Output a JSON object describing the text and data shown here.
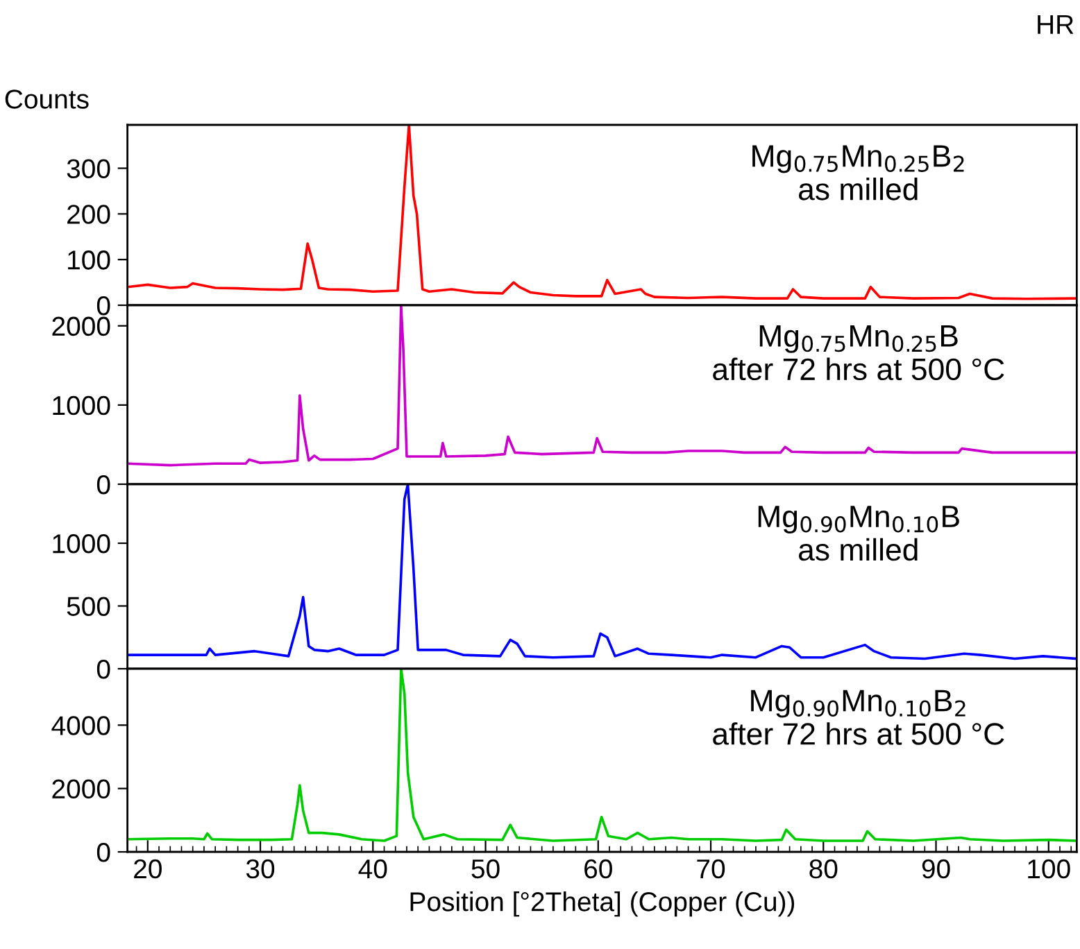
{
  "chart_data": [
    {
      "type": "line",
      "ylabel": "Counts",
      "annotations": [
        "Mg$_{0.75}$Mn$_{0.25}$B$_{2}$\nas milled",
        "HR"
      ],
      "xlim": [
        18.2,
        102.5
      ],
      "ylim": [
        0,
        395
      ],
      "yticks": [
        0,
        100,
        200,
        300
      ],
      "tick_labels": "y",
      "series": [
        {
          "color": "#ff0000",
          "x": [
            18.2,
            20,
            22,
            23.5,
            24,
            26,
            28,
            30,
            32,
            33.6,
            34.2,
            34.6,
            35.2,
            36,
            38,
            40,
            42.2,
            42.8,
            43.2,
            43.6,
            43.9,
            44.4,
            45,
            47,
            49,
            51.5,
            52.5,
            53,
            54,
            56,
            58,
            60.3,
            60.8,
            61.5,
            63.8,
            64.2,
            65,
            68,
            71,
            74,
            76.8,
            77.3,
            78,
            80,
            83.7,
            84.2,
            85,
            88,
            92,
            93,
            95,
            98,
            102.5
          ],
          "values": [
            40,
            45,
            38,
            40,
            48,
            38,
            37,
            35,
            34,
            36,
            135,
            100,
            38,
            35,
            34,
            30,
            32,
            260,
            395,
            240,
            200,
            35,
            30,
            35,
            28,
            26,
            50,
            40,
            28,
            22,
            20,
            20,
            55,
            25,
            35,
            25,
            18,
            16,
            18,
            15,
            15,
            35,
            18,
            15,
            15,
            40,
            18,
            15,
            16,
            25,
            15,
            14,
            15
          ]
        }
      ]
    },
    {
      "type": "line",
      "annotations": [
        "Mg$_{0.75}$Mn$_{0.25}$B\nafter 72 hrs at 500 °C"
      ],
      "xlim": [
        18.2,
        102.5
      ],
      "ylim": [
        0,
        2260
      ],
      "yticks": [
        0,
        1000,
        2000
      ],
      "tick_labels": "y",
      "series": [
        {
          "color": "#cc00cc",
          "x": [
            18.2,
            22,
            26,
            28.7,
            29,
            30,
            32,
            33.3,
            33.5,
            33.8,
            34.3,
            34.8,
            35.3,
            38,
            40,
            42.2,
            42.5,
            42.7,
            43,
            46,
            46.2,
            46.5,
            50,
            51.7,
            52,
            52.6,
            55,
            59.6,
            59.9,
            60.4,
            63,
            66,
            68,
            71,
            73,
            76.2,
            76.6,
            77.2,
            80,
            83.7,
            84,
            84.5,
            88,
            92,
            92.3,
            95,
            98,
            102.5
          ],
          "values": [
            260,
            240,
            260,
            260,
            310,
            270,
            280,
            300,
            1120,
            700,
            300,
            360,
            310,
            310,
            320,
            450,
            2260,
            1700,
            350,
            350,
            520,
            350,
            360,
            380,
            600,
            400,
            380,
            400,
            580,
            410,
            400,
            400,
            420,
            420,
            400,
            400,
            470,
            410,
            400,
            400,
            460,
            410,
            400,
            400,
            450,
            400,
            400,
            400
          ]
        }
      ]
    },
    {
      "type": "line",
      "annotations": [
        "Mg$_{0.90}$Mn$_{0.10}$B\nas milled"
      ],
      "xlim": [
        18.2,
        102.5
      ],
      "ylim": [
        0,
        1470
      ],
      "yticks": [
        0,
        500,
        1000
      ],
      "tick_labels": "y",
      "series": [
        {
          "color": "#0000ff",
          "x": [
            18.2,
            22,
            25.2,
            25.5,
            26,
            29.5,
            31,
            32.5,
            33.5,
            33.8,
            34.3,
            34.8,
            36,
            37,
            38.5,
            41,
            42.2,
            42.8,
            43.1,
            43.6,
            44,
            46.5,
            48,
            51.3,
            52.2,
            52.8,
            53.5,
            56,
            59.6,
            60.2,
            60.8,
            61.5,
            63.5,
            64.5,
            66.5,
            70,
            71,
            74,
            76.3,
            77,
            78,
            80,
            83.7,
            84.5,
            86,
            89,
            92.5,
            94,
            97,
            99.5,
            102.5
          ],
          "values": [
            110,
            110,
            110,
            160,
            110,
            140,
            120,
            100,
            420,
            570,
            180,
            150,
            140,
            160,
            110,
            110,
            150,
            1350,
            1470,
            800,
            150,
            150,
            110,
            100,
            230,
            200,
            100,
            90,
            100,
            280,
            250,
            100,
            160,
            120,
            110,
            90,
            110,
            90,
            180,
            170,
            90,
            90,
            190,
            140,
            90,
            80,
            120,
            110,
            80,
            100,
            80
          ]
        }
      ]
    },
    {
      "type": "line",
      "xlabel": "Position [°2Theta] (Copper (Cu))",
      "annotations": [
        "Mg$_{0.90}$Mn$_{0.10}$B$_{2}$\nafter 72 hrs at 500 °C"
      ],
      "xlim": [
        18.2,
        102.5
      ],
      "xticks": [
        20,
        30,
        40,
        50,
        60,
        70,
        80,
        90,
        100
      ],
      "ylim": [
        0,
        5780
      ],
      "yticks": [
        0,
        2000,
        4000
      ],
      "series": [
        {
          "color": "#00cc00",
          "x": [
            18.2,
            22,
            24,
            25,
            25.3,
            25.7,
            28,
            31,
            32.8,
            33.3,
            33.5,
            33.8,
            34.3,
            35.5,
            37,
            39,
            41,
            42.1,
            42.5,
            42.8,
            43.1,
            43.6,
            44.5,
            46.3,
            47.5,
            51.5,
            52.2,
            52.8,
            56,
            59.8,
            60.3,
            60.9,
            62.5,
            63.5,
            64.5,
            66.5,
            68,
            71,
            74,
            76.3,
            76.7,
            77.5,
            80,
            83.5,
            83.9,
            84.6,
            88,
            92.2,
            93,
            96,
            100,
            102.5
          ],
          "values": [
            400,
            420,
            420,
            400,
            580,
            400,
            380,
            380,
            400,
            1500,
            2100,
            1300,
            600,
            600,
            550,
            400,
            350,
            500,
            5780,
            5000,
            2500,
            1100,
            400,
            550,
            400,
            380,
            850,
            450,
            350,
            400,
            1100,
            500,
            400,
            600,
            400,
            450,
            400,
            400,
            350,
            380,
            700,
            400,
            350,
            350,
            650,
            400,
            350,
            450,
            400,
            350,
            380,
            350
          ]
        }
      ]
    }
  ]
}
